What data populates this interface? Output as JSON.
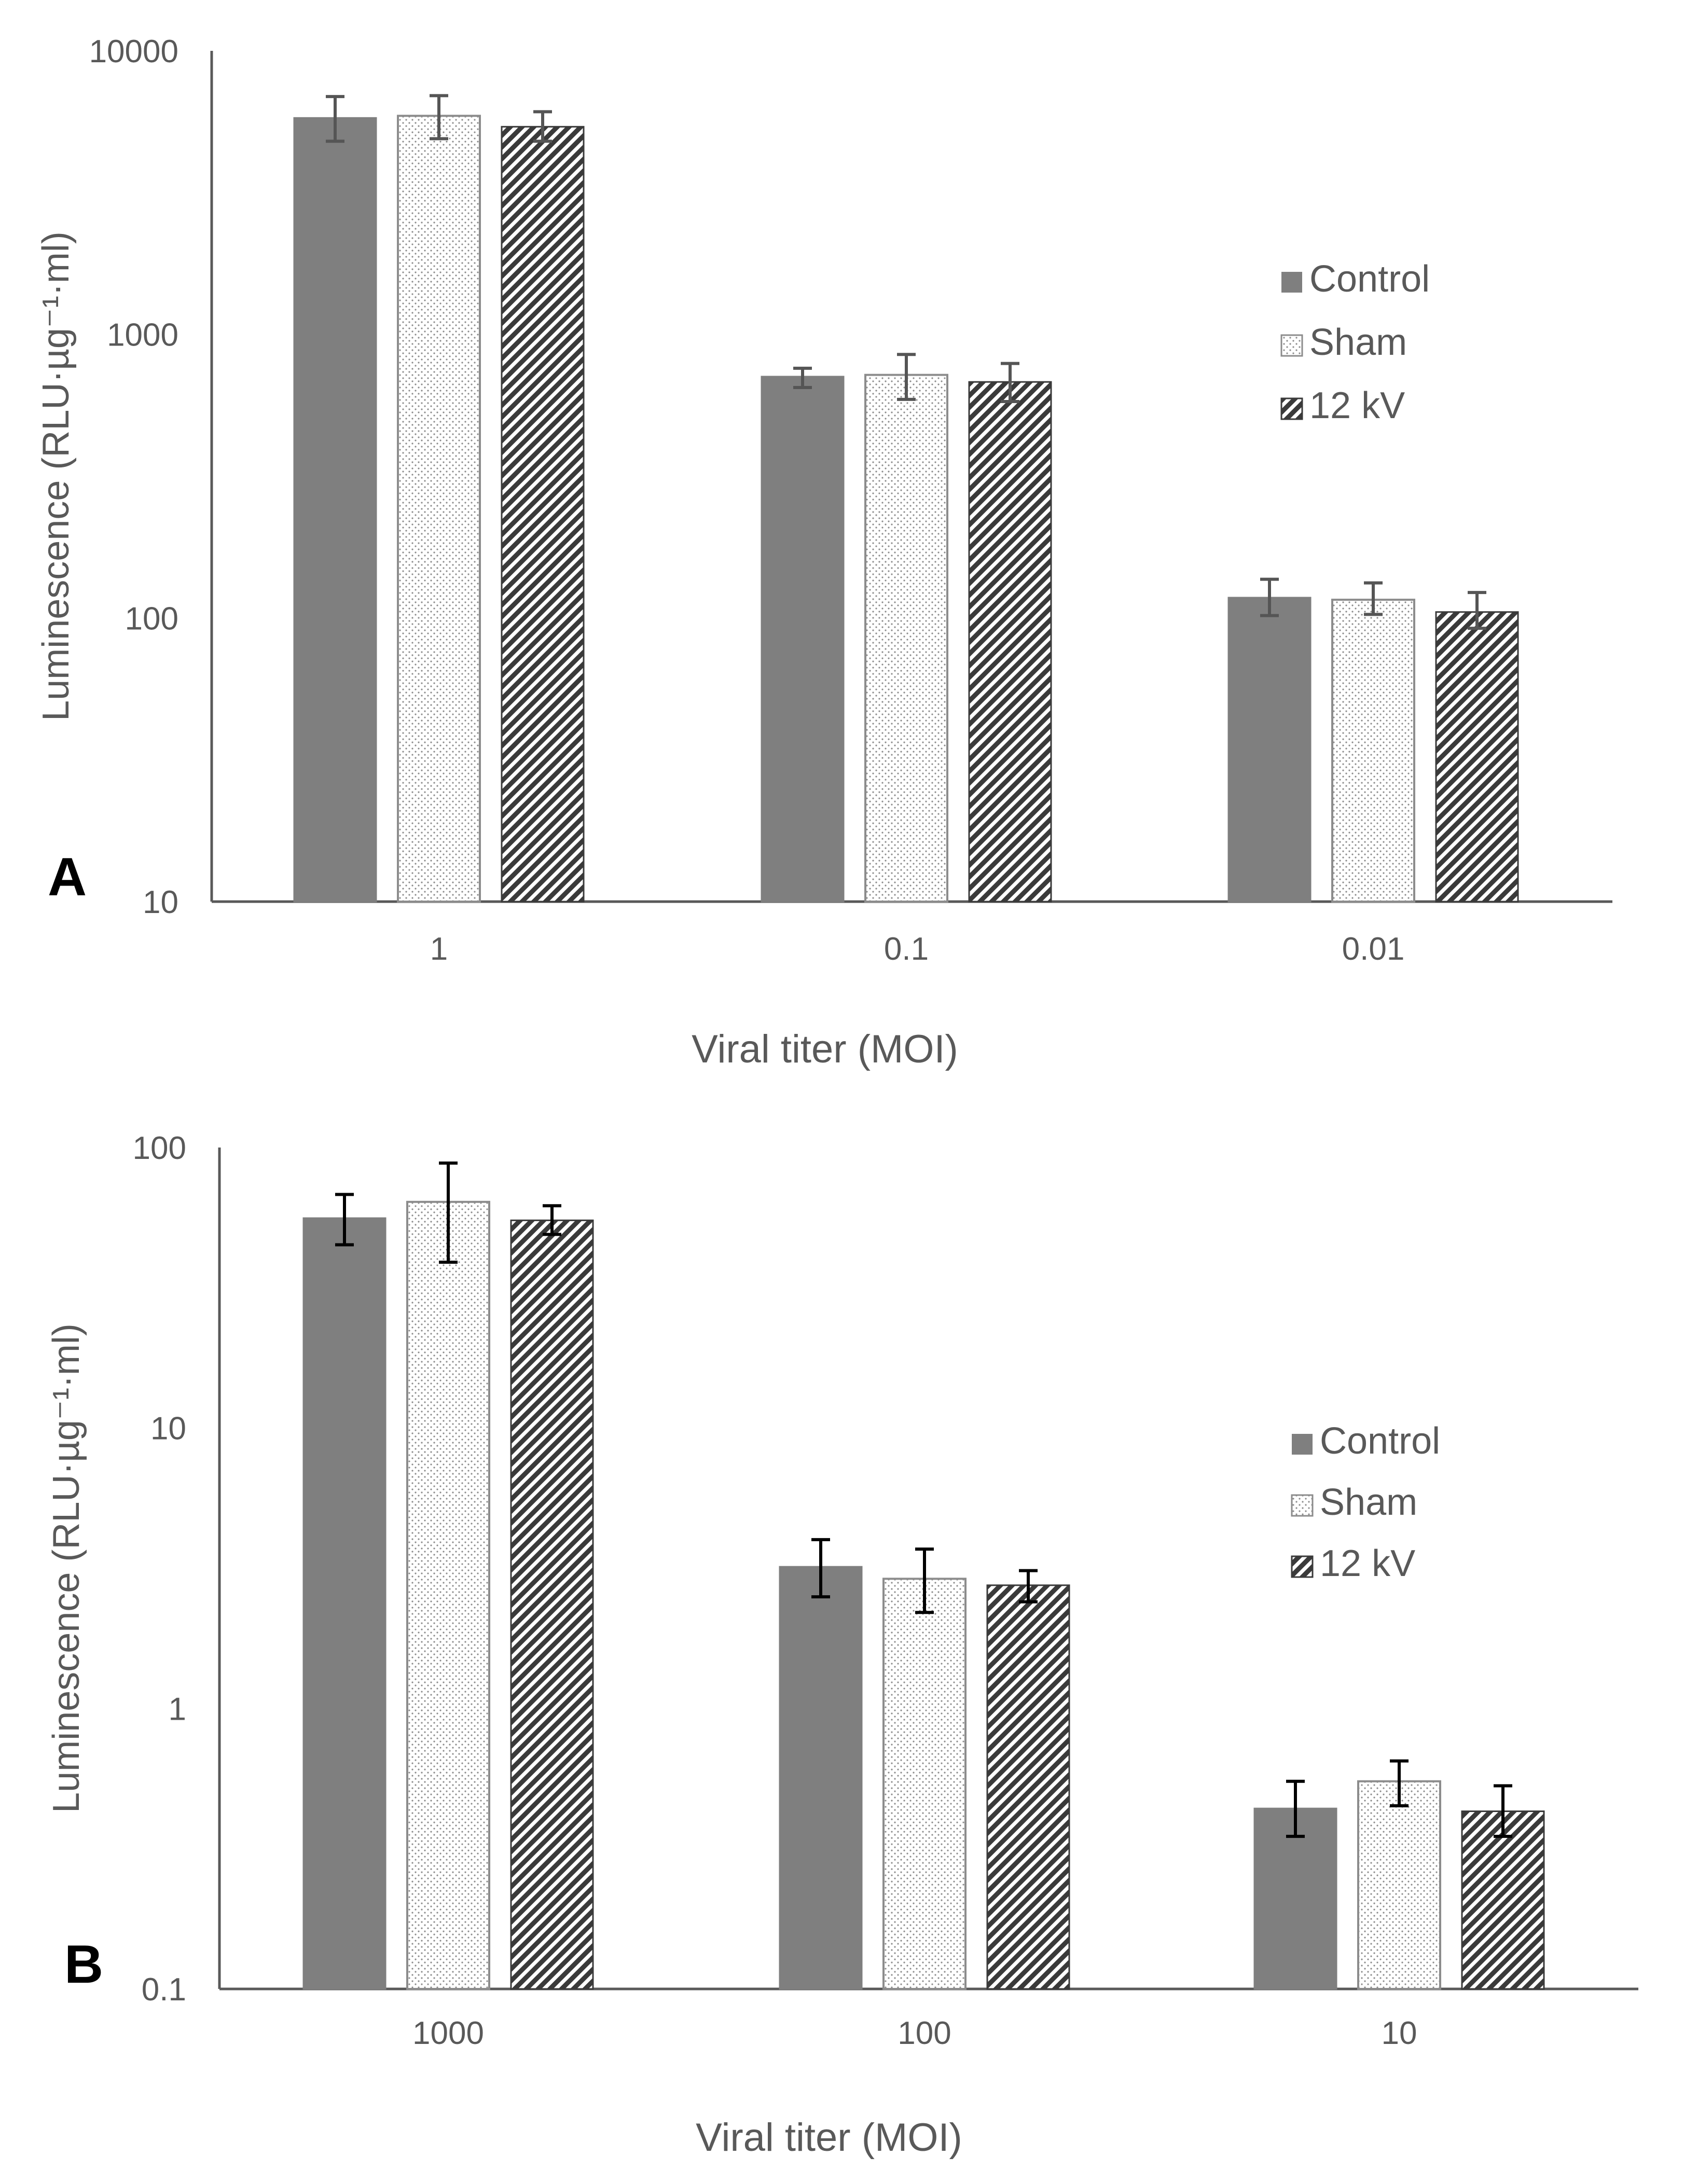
{
  "colors": {
    "control": "#7f7f7f",
    "sham_fill": "#ffffff",
    "sham_dots": "#8c8c8c",
    "stripe_dark": "#3a3a3a",
    "stripe_light": "#ffffff",
    "axis": "#595959",
    "text": "#595959",
    "panel_label": "#000000",
    "err_a": "#555555",
    "err_b": "#000000"
  },
  "chart_data": [
    {
      "type": "bar",
      "scale": "log",
      "panel_label": "A",
      "ylabel": "Luminescence (RLU·µg⁻¹·ml)",
      "xlabel": "Viral titer (MOI)",
      "ylim": [
        10,
        10000
      ],
      "yticks": [
        "10000",
        "1000",
        "100",
        "10"
      ],
      "categories": [
        "1",
        "0.1",
        "0.01"
      ],
      "legend_position": "right",
      "series": [
        {
          "name": "Control",
          "values": [
            5800,
            710,
            118
          ],
          "err_low": [
            4800,
            650,
            102
          ],
          "err_high": [
            6900,
            760,
            137
          ]
        },
        {
          "name": "Sham",
          "values": [
            5900,
            720,
            116
          ],
          "err_low": [
            4900,
            590,
            103
          ],
          "err_high": [
            6950,
            850,
            133
          ]
        },
        {
          "name": "12 kV",
          "values": [
            5400,
            680,
            105
          ],
          "err_low": [
            4800,
            580,
            92
          ],
          "err_high": [
            6100,
            790,
            123
          ]
        }
      ]
    },
    {
      "type": "bar",
      "scale": "log",
      "panel_label": "B",
      "ylabel": "Luminescence (RLU·µg⁻¹·ml)",
      "xlabel": "Viral titer (MOI)",
      "ylim": [
        0.1,
        100
      ],
      "yticks": [
        "100",
        "10",
        "1",
        "0.1"
      ],
      "categories": [
        "1000",
        "100",
        "10"
      ],
      "legend_position": "right",
      "series": [
        {
          "name": "Control",
          "values": [
            56,
            3.2,
            0.44
          ],
          "err_low": [
            45,
            2.5,
            0.35
          ],
          "err_high": [
            68,
            4.0,
            0.55
          ]
        },
        {
          "name": "Sham",
          "values": [
            64,
            2.9,
            0.55
          ],
          "err_low": [
            39,
            2.2,
            0.45
          ],
          "err_high": [
            88,
            3.7,
            0.65
          ]
        },
        {
          "name": "12 kV",
          "values": [
            55,
            2.75,
            0.43
          ],
          "err_low": [
            49,
            2.4,
            0.35
          ],
          "err_high": [
            62,
            3.1,
            0.53
          ]
        }
      ]
    }
  ]
}
